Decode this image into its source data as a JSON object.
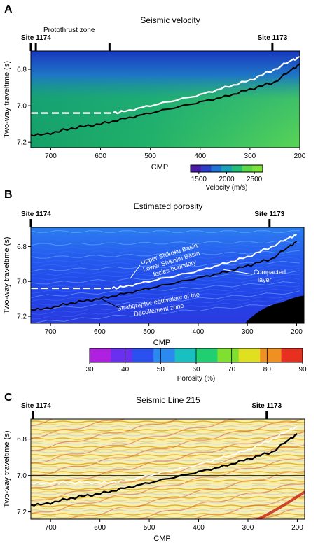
{
  "figure": {
    "panels": [
      {
        "letter": "A",
        "title": "Seismic velocity",
        "sites": [
          {
            "label": "Site 1174",
            "cmp": 740
          },
          {
            "label": "Site 1173",
            "cmp": 255
          }
        ],
        "extra_marks": [
          {
            "label": "Protothrust zone",
            "cmp": 730
          },
          {
            "label": "",
            "cmp": 582
          }
        ],
        "colorbar": {
          "title": "Velocity (m/s)",
          "ticks": [
            1500,
            2000,
            2500
          ],
          "colors": [
            "#4a1aa8",
            "#2d3fc8",
            "#1f74d4",
            "#1aa0b8",
            "#24c07a",
            "#5ad84a",
            "#7ee03a"
          ]
        }
      },
      {
        "letter": "B",
        "title": "Estimated porosity",
        "sites": [
          {
            "label": "Site 1174",
            "cmp": 740
          },
          {
            "label": "Site 1173",
            "cmp": 255
          }
        ],
        "annotations": [
          "Upper Shikoku Basin/",
          "Lower Shikoku Basin",
          "facies boundary",
          "Compacted",
          "layer",
          "Stratigraphic equivalent of the",
          "Décollement zone"
        ],
        "colorbar": {
          "title": "Porosity (%)",
          "ticks": [
            30,
            40,
            50,
            60,
            70,
            80,
            90
          ],
          "colors": [
            "#b020e0",
            "#6a30f0",
            "#2a50f0",
            "#2a8af0",
            "#18c0c0",
            "#20d070",
            "#80e030",
            "#e0e020",
            "#f09020",
            "#e83020"
          ]
        }
      },
      {
        "letter": "C",
        "title": "Seismic Line 215",
        "sites": [
          {
            "label": "Site 1174",
            "cmp": 735
          },
          {
            "label": "Site 1173",
            "cmp": 262
          }
        ]
      }
    ],
    "axes": {
      "xlabel": "CMP",
      "ylabel": "Two-way traveltime (s)",
      "x_ticks": [
        700,
        600,
        500,
        400,
        300,
        200
      ],
      "y_ticks": [
        "6.8",
        "7.0",
        "7.2"
      ]
    },
    "horizons": {
      "boundary_white": {
        "cmp": [
          740,
          700,
          650,
          600,
          575,
          550,
          500,
          450,
          400,
          350,
          300,
          250,
          215,
          200
        ],
        "twt": [
          7.04,
          7.04,
          7.04,
          7.04,
          7.04,
          7.03,
          7.0,
          6.97,
          6.94,
          6.9,
          6.86,
          6.8,
          6.75,
          6.73
        ]
      },
      "decollement_black": {
        "cmp": [
          740,
          700,
          650,
          600,
          550,
          500,
          450,
          400,
          350,
          300,
          250,
          215,
          200
        ],
        "twt": [
          7.16,
          7.15,
          7.12,
          7.1,
          7.07,
          7.04,
          7.01,
          6.98,
          6.95,
          6.91,
          6.87,
          6.8,
          6.77
        ]
      }
    }
  }
}
